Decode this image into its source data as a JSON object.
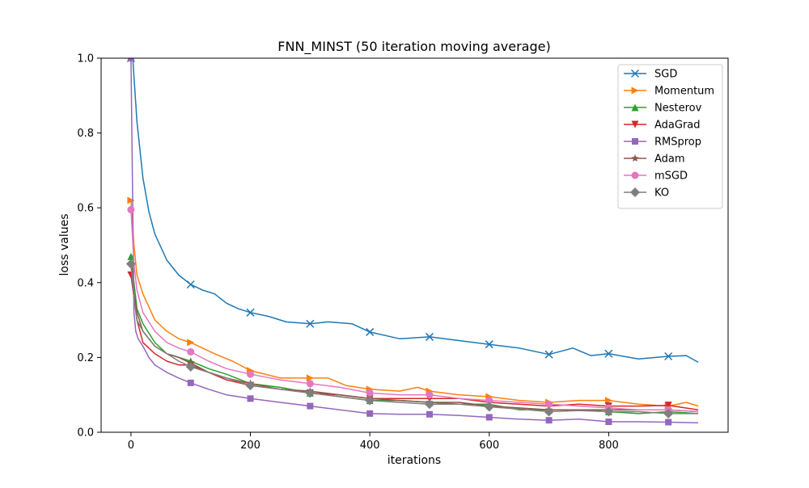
{
  "chart_data": {
    "type": "line",
    "title": "FNN_MINST (50 iteration moving average)",
    "xlabel": "iterations",
    "ylabel": "loss values",
    "xlim": [
      -50,
      1000
    ],
    "ylim": [
      0.0,
      1.0
    ],
    "xticks": [
      "0",
      "200",
      "400",
      "600",
      "800"
    ],
    "xtick_values": [
      0,
      200,
      400,
      600,
      800
    ],
    "yticks": [
      "0.0",
      "0.2",
      "0.4",
      "0.6",
      "0.8",
      "1.0"
    ],
    "ytick_values": [
      0.0,
      0.2,
      0.4,
      0.6,
      0.8,
      1.0
    ],
    "grid": false,
    "legend_position": "top-right",
    "marker_x": [
      0,
      100,
      200,
      300,
      400,
      500,
      600,
      700,
      800,
      900
    ],
    "series": [
      {
        "name": "SGD",
        "color": "#1f77b4",
        "marker": "x",
        "x": [
          0,
          3,
          10,
          20,
          30,
          40,
          60,
          80,
          100,
          120,
          140,
          160,
          180,
          200,
          230,
          260,
          300,
          330,
          370,
          400,
          450,
          500,
          550,
          600,
          650,
          700,
          740,
          770,
          800,
          850,
          900,
          930,
          950
        ],
        "y": [
          1.0,
          1.0,
          0.83,
          0.68,
          0.59,
          0.53,
          0.46,
          0.42,
          0.395,
          0.38,
          0.37,
          0.345,
          0.33,
          0.32,
          0.31,
          0.295,
          0.29,
          0.295,
          0.29,
          0.268,
          0.25,
          0.255,
          0.245,
          0.235,
          0.225,
          0.208,
          0.225,
          0.205,
          0.21,
          0.196,
          0.203,
          0.205,
          0.187
        ]
      },
      {
        "name": "Momentum",
        "color": "#ff7f0e",
        "marker": "right-triangle",
        "x": [
          0,
          5,
          10,
          20,
          40,
          60,
          80,
          100,
          140,
          170,
          200,
          250,
          300,
          330,
          360,
          400,
          450,
          480,
          500,
          550,
          600,
          650,
          700,
          750,
          800,
          850,
          900,
          930,
          950
        ],
        "y": [
          0.62,
          0.5,
          0.42,
          0.37,
          0.3,
          0.27,
          0.25,
          0.24,
          0.21,
          0.19,
          0.165,
          0.145,
          0.145,
          0.145,
          0.125,
          0.115,
          0.11,
          0.12,
          0.11,
          0.1,
          0.095,
          0.085,
          0.08,
          0.085,
          0.085,
          0.075,
          0.07,
          0.08,
          0.07
        ]
      },
      {
        "name": "Nesterov",
        "color": "#2ca02c",
        "marker": "triangle",
        "x": [
          0,
          5,
          10,
          20,
          40,
          60,
          80,
          100,
          130,
          160,
          200,
          250,
          300,
          350,
          400,
          450,
          500,
          550,
          600,
          650,
          700,
          750,
          800,
          850,
          900,
          950
        ],
        "y": [
          0.47,
          0.4,
          0.33,
          0.29,
          0.24,
          0.21,
          0.2,
          0.19,
          0.17,
          0.155,
          0.13,
          0.12,
          0.105,
          0.095,
          0.085,
          0.085,
          0.08,
          0.075,
          0.075,
          0.06,
          0.06,
          0.06,
          0.055,
          0.05,
          0.055,
          0.05
        ]
      },
      {
        "name": "AdaGrad",
        "color": "#d62728",
        "marker": "down-triangle",
        "x": [
          0,
          5,
          10,
          20,
          40,
          60,
          80,
          100,
          130,
          160,
          200,
          250,
          300,
          350,
          400,
          450,
          500,
          550,
          600,
          650,
          700,
          750,
          800,
          850,
          900,
          950
        ],
        "y": [
          0.42,
          0.36,
          0.3,
          0.24,
          0.21,
          0.19,
          0.18,
          0.18,
          0.16,
          0.14,
          0.125,
          0.115,
          0.105,
          0.1,
          0.09,
          0.09,
          0.09,
          0.09,
          0.08,
          0.075,
          0.07,
          0.075,
          0.07,
          0.07,
          0.072,
          0.06
        ]
      },
      {
        "name": "RMSprop",
        "color": "#9467bd",
        "marker": "square",
        "x": [
          0,
          3,
          5,
          8,
          12,
          20,
          30,
          40,
          60,
          80,
          100,
          130,
          160,
          200,
          250,
          300,
          350,
          400,
          450,
          500,
          550,
          600,
          650,
          700,
          750,
          800,
          850,
          900,
          950
        ],
        "y": [
          1.0,
          0.6,
          0.32,
          0.27,
          0.25,
          0.23,
          0.2,
          0.18,
          0.16,
          0.145,
          0.132,
          0.115,
          0.1,
          0.09,
          0.08,
          0.07,
          0.06,
          0.05,
          0.048,
          0.048,
          0.045,
          0.04,
          0.035,
          0.032,
          0.035,
          0.028,
          0.028,
          0.027,
          0.025
        ]
      },
      {
        "name": "Adam",
        "color": "#8c564b",
        "marker": "star",
        "x": [
          0,
          5,
          10,
          20,
          40,
          60,
          80,
          100,
          130,
          160,
          200,
          250,
          300,
          350,
          400,
          450,
          500,
          550,
          600,
          650,
          700,
          750,
          800,
          850,
          900,
          950
        ],
        "y": [
          0.45,
          0.37,
          0.32,
          0.27,
          0.23,
          0.21,
          0.2,
          0.185,
          0.16,
          0.145,
          0.13,
          0.115,
          0.11,
          0.1,
          0.09,
          0.085,
          0.08,
          0.08,
          0.07,
          0.065,
          0.06,
          0.06,
          0.06,
          0.06,
          0.06,
          0.055
        ]
      },
      {
        "name": "mSGD",
        "color": "#e377c2",
        "marker": "circle",
        "x": [
          0,
          5,
          10,
          20,
          40,
          60,
          80,
          100,
          130,
          160,
          200,
          250,
          300,
          350,
          400,
          450,
          500,
          550,
          600,
          650,
          700,
          750,
          800,
          850,
          900,
          950
        ],
        "y": [
          0.595,
          0.45,
          0.38,
          0.32,
          0.27,
          0.24,
          0.225,
          0.215,
          0.19,
          0.17,
          0.155,
          0.14,
          0.13,
          0.12,
          0.105,
          0.1,
          0.1,
          0.09,
          0.085,
          0.08,
          0.075,
          0.07,
          0.065,
          0.06,
          0.06,
          0.055
        ]
      },
      {
        "name": "KO",
        "color": "#7f7f7f",
        "marker": "diamond",
        "x": [
          0,
          5,
          10,
          20,
          40,
          60,
          80,
          100,
          130,
          160,
          200,
          250,
          300,
          350,
          400,
          450,
          500,
          550,
          600,
          650,
          700,
          750,
          800,
          850,
          900,
          950
        ],
        "y": [
          0.45,
          0.36,
          0.3,
          0.27,
          0.23,
          0.21,
          0.19,
          0.175,
          0.16,
          0.145,
          0.125,
          0.115,
          0.105,
          0.095,
          0.085,
          0.08,
          0.075,
          0.075,
          0.068,
          0.062,
          0.055,
          0.058,
          0.055,
          0.055,
          0.05,
          0.05
        ]
      }
    ]
  }
}
